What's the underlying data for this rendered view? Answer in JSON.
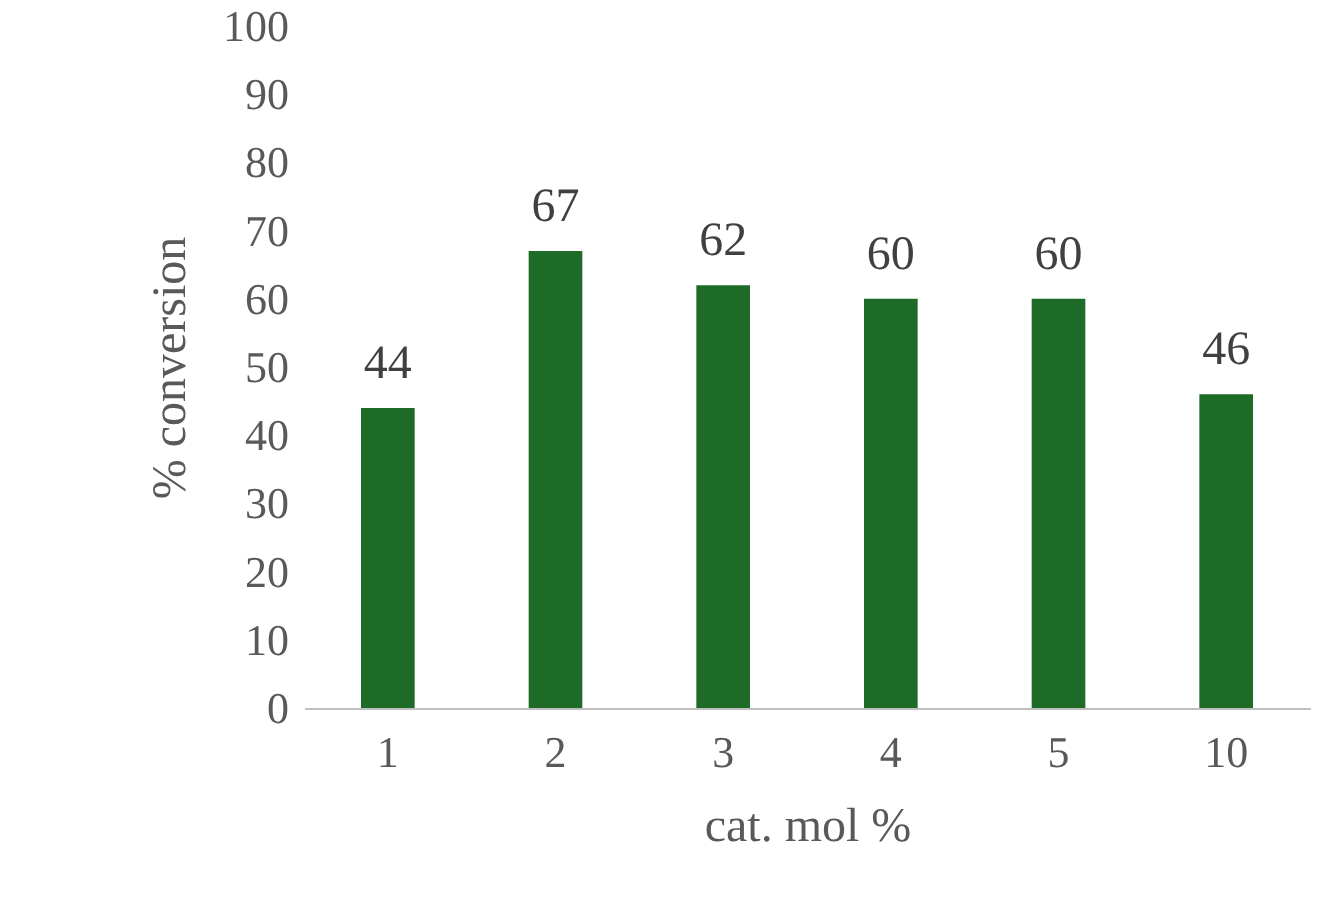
{
  "chart_data": {
    "type": "bar",
    "xlabel": "cat. mol %",
    "ylabel": "% conversion",
    "categories": [
      "1",
      "2",
      "3",
      "4",
      "5",
      "10"
    ],
    "values": [
      44,
      67,
      62,
      60,
      60,
      46
    ],
    "color": "#1e6b28",
    "ylim": [
      0,
      100
    ],
    "yticks": [
      0,
      10,
      20,
      30,
      40,
      50,
      60,
      70,
      80,
      90,
      100
    ],
    "grid": false,
    "data_labels": true
  }
}
